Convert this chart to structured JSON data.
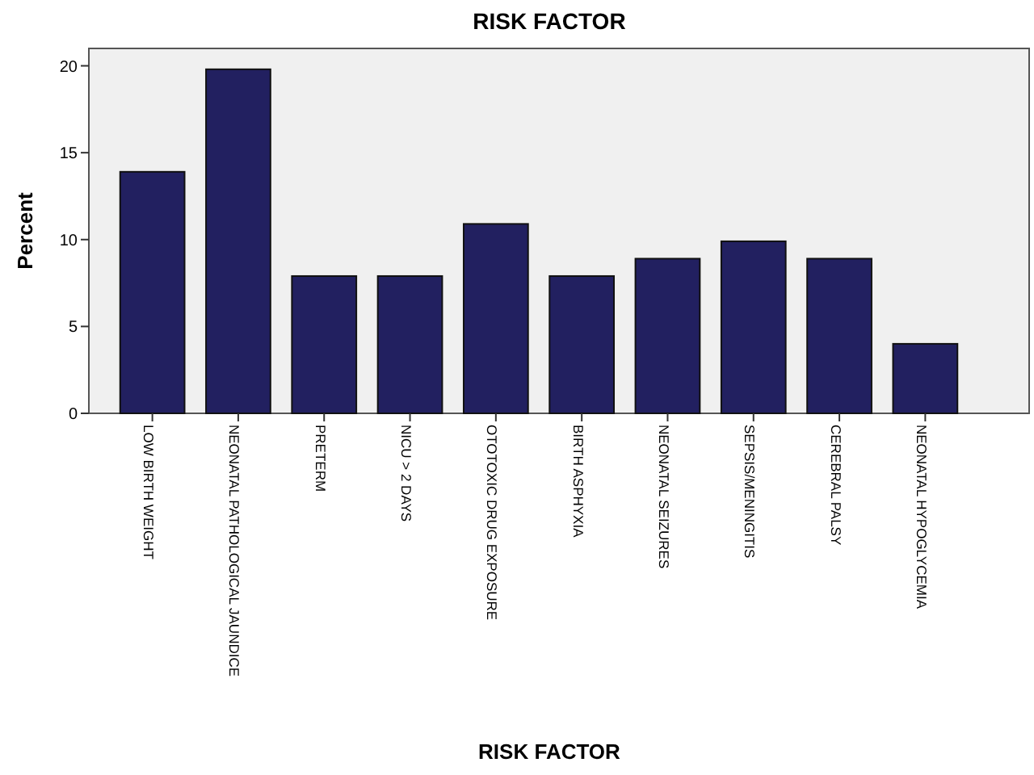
{
  "chart_data": {
    "type": "bar",
    "title": "RISK FACTOR",
    "xlabel": "RISK FACTOR",
    "ylabel": "Percent",
    "categories": [
      "LOW BIRTH WEIGHT",
      "NEONATAL PATHOLOGICAL JAUNDICE",
      "PRETERM",
      "NICU > 2 DAYS",
      "OTOTOXIC DRUG EXPOSURE",
      "BIRTH ASPHYXIA",
      "NEONATAL SEIZURES",
      "SEPSIS/MENINGITIS",
      "CEREBRAL PALSY",
      "NEONATAL HYPOGLYCEMIA"
    ],
    "values": [
      13.9,
      19.8,
      7.9,
      7.9,
      10.9,
      7.9,
      8.9,
      9.9,
      8.9,
      4.0
    ],
    "color": "#222060",
    "ylim": [
      0,
      21
    ],
    "yticks": [
      0,
      5,
      10,
      15,
      20
    ],
    "grid": false
  }
}
